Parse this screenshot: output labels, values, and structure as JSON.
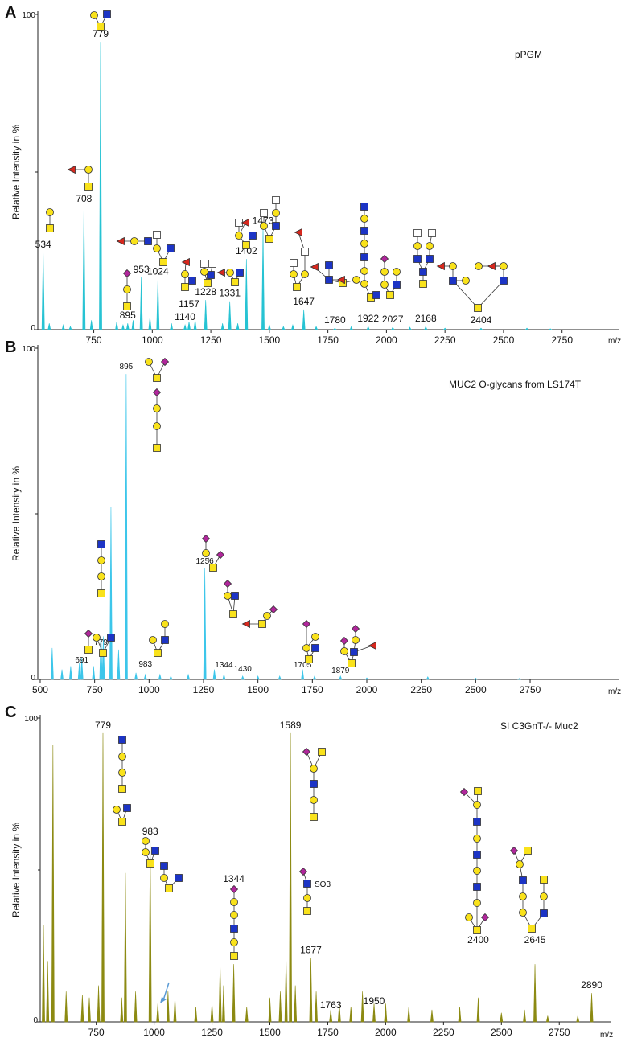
{
  "chart_data": [
    {
      "type": "spectrum",
      "panel_label": "A",
      "title": "pPGM",
      "y_label": "Relative Intensity in %",
      "x_label": "m/z",
      "color": "#27c3d3",
      "xlim": [
        511,
        2995
      ],
      "ylim": [
        0,
        100
      ],
      "yticks": [
        0,
        100
      ],
      "yminor_ticks": [
        50
      ],
      "xticks": [
        750,
        1000,
        1250,
        1500,
        1750,
        2000,
        2250,
        2500,
        2750
      ],
      "labeled_peaks": {
        "x": [
          534,
          708,
          779,
          895,
          953,
          1024,
          1140,
          1157,
          1228,
          1331,
          1402,
          1473,
          1647,
          1780,
          1922,
          2027,
          2168,
          2404
        ],
        "values": [
          24.5,
          39,
          91.3,
          2,
          16.6,
          16,
          1.5,
          2.5,
          9.4,
          9,
          22.4,
          32,
          6.4,
          0.5,
          1,
          0.8,
          1,
          0.5
        ]
      },
      "other_peaks": {
        "x": [
          560,
          620,
          650,
          740,
          848,
          875,
          918,
          990,
          1082,
          1183,
          1300,
          1365,
          1500,
          1560,
          1600,
          1700,
          1850,
          2100,
          2250,
          2600,
          2700
        ],
        "values": [
          2,
          1.5,
          1,
          3,
          2.5,
          1.5,
          3,
          4,
          2,
          3,
          2,
          2,
          1.5,
          1,
          1.5,
          1,
          1,
          0.8,
          0.5,
          0.5,
          0.3
        ]
      }
    },
    {
      "type": "spectrum",
      "panel_label": "B",
      "title": "MUC2 O-glycans from LS174T",
      "y_label": "Relative Intensity in %",
      "x_label": "m/z",
      "color": "#3cc6ea",
      "xlim": [
        489,
        3160
      ],
      "ylim": [
        0,
        100
      ],
      "yticks": [
        0,
        100
      ],
      "yminor_ticks": [
        50
      ],
      "xticks": [
        500,
        750,
        1000,
        1250,
        1500,
        1750,
        2000,
        2250,
        2500,
        2750
      ],
      "labeled_peaks": {
        "x": [
          691,
          779,
          895,
          983,
          1256,
          1344,
          1430,
          1705,
          1879
        ],
        "values": [
          6.5,
          15,
          92.2,
          1.5,
          33.5,
          1.5,
          1,
          3,
          1
        ]
      },
      "other_peaks": {
        "x": [
          555,
          600,
          640,
          680,
          745,
          790,
          825,
          860,
          940,
          1050,
          1100,
          1180,
          1300,
          1500,
          1600,
          1760,
          2000,
          2280,
          2500,
          2700
        ],
        "values": [
          9.5,
          3,
          4,
          5,
          4,
          13,
          52,
          9,
          2,
          1.5,
          1,
          1.5,
          3,
          1,
          1,
          1,
          0.5,
          0.8,
          0.4,
          0.3
        ]
      }
    },
    {
      "type": "spectrum",
      "panel_label": "C",
      "title": "SI C3GnT-/- Muc2",
      "y_label": "Relative Intensity in %",
      "x_label": "m/z",
      "color": "#8c8a12",
      "note_text": "SO3",
      "xlim": [
        508,
        2975
      ],
      "ylim": [
        0,
        100
      ],
      "yticks": [
        0,
        100
      ],
      "yminor_ticks": [
        50
      ],
      "xticks": [
        750,
        1000,
        1250,
        1500,
        1750,
        2000,
        2250,
        2500,
        2750
      ],
      "labeled_peaks": {
        "x": [
          779,
          983,
          1344,
          1589,
          1677,
          1763,
          1950,
          2400,
          2645,
          2890
        ],
        "values": [
          95,
          60,
          19,
          95,
          21,
          4,
          6,
          8,
          19,
          9.5
        ]
      },
      "other_peaks": {
        "x": [
          522,
          540,
          563,
          620,
          690,
          720,
          760,
          860,
          876,
          920,
          1016,
          1060,
          1090,
          1180,
          1250,
          1285,
          1300,
          1400,
          1500,
          1545,
          1570,
          1610,
          1700,
          1800,
          1850,
          1900,
          2000,
          2100,
          2200,
          2320,
          2500,
          2600,
          2700,
          2830
        ],
        "values": [
          32,
          20,
          91,
          10,
          9,
          8,
          12,
          8,
          49,
          10,
          6,
          10,
          8,
          5,
          6,
          19,
          12,
          5,
          8,
          10,
          21,
          12,
          10,
          6,
          5,
          10,
          6,
          5,
          4,
          5,
          3,
          4,
          2,
          2
        ]
      }
    }
  ]
}
